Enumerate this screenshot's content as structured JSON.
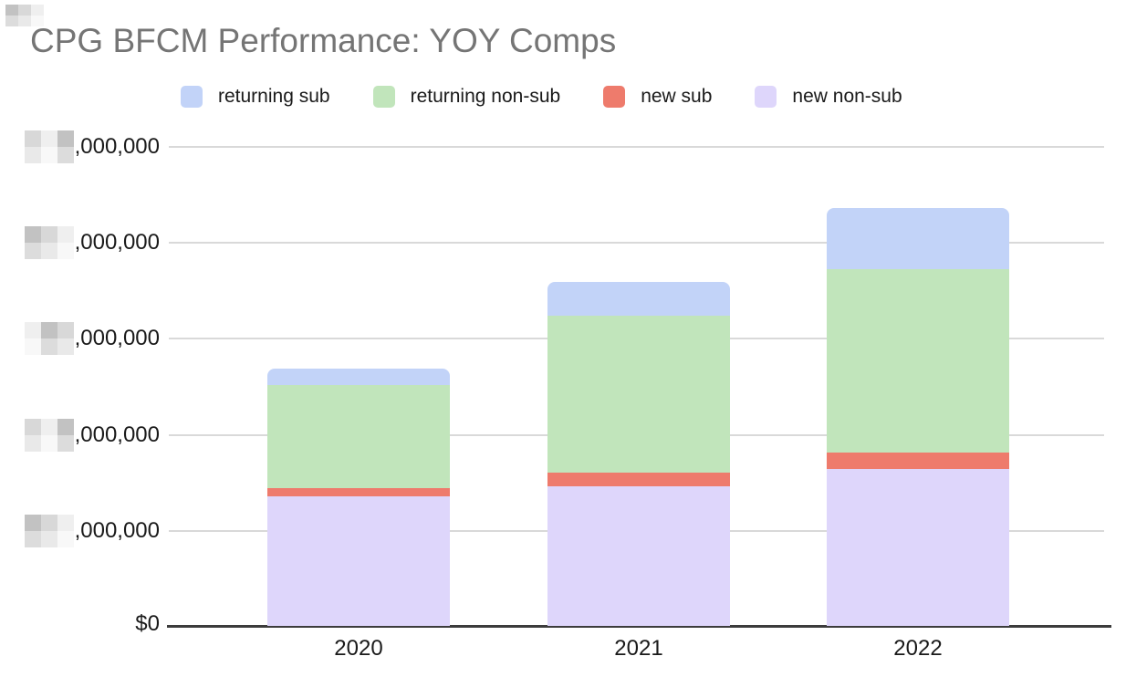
{
  "chart_data": {
    "type": "bar",
    "stacked": true,
    "title": "CPG BFCM Performance: YOY Comps",
    "categories": [
      "2020",
      "2021",
      "2022"
    ],
    "series": [
      {
        "name": "returning sub",
        "color": "#c2d3f8",
        "values": [
          0.171,
          0.352,
          0.637
        ]
      },
      {
        "name": "returning non-sub",
        "color": "#c1e5bb",
        "values": [
          1.074,
          1.635,
          1.911
        ]
      },
      {
        "name": "new sub",
        "color": "#ee7b6c",
        "values": [
          0.086,
          0.143,
          0.171
        ]
      },
      {
        "name": "new non-sub",
        "color": "#ded6fb",
        "values": [
          1.35,
          1.454,
          1.635
        ]
      }
    ],
    "stack_order_bottom_to_top": [
      "new non-sub",
      "new sub",
      "returning non-sub",
      "returning sub"
    ],
    "value_note": "values estimated in gridline units; leading digits of y-axis dollar labels are pixelated/redacted in source image",
    "legend_position": "top",
    "grid": true,
    "y_axis": {
      "zero_label": "$0",
      "tick_visible_suffix": ",000,000",
      "tick_count_above_zero": 5,
      "tick_leading_digits_redacted": true
    },
    "x_axis": {
      "labels": [
        "2020",
        "2021",
        "2022"
      ]
    }
  },
  "colors": {
    "title_text": "#757575",
    "axis_text": "#1a1a1a",
    "legend_text": "#1a1a1a",
    "gridline": "#d9d9d9",
    "axis_line": "#3c3c3c",
    "background": "#ffffff"
  }
}
